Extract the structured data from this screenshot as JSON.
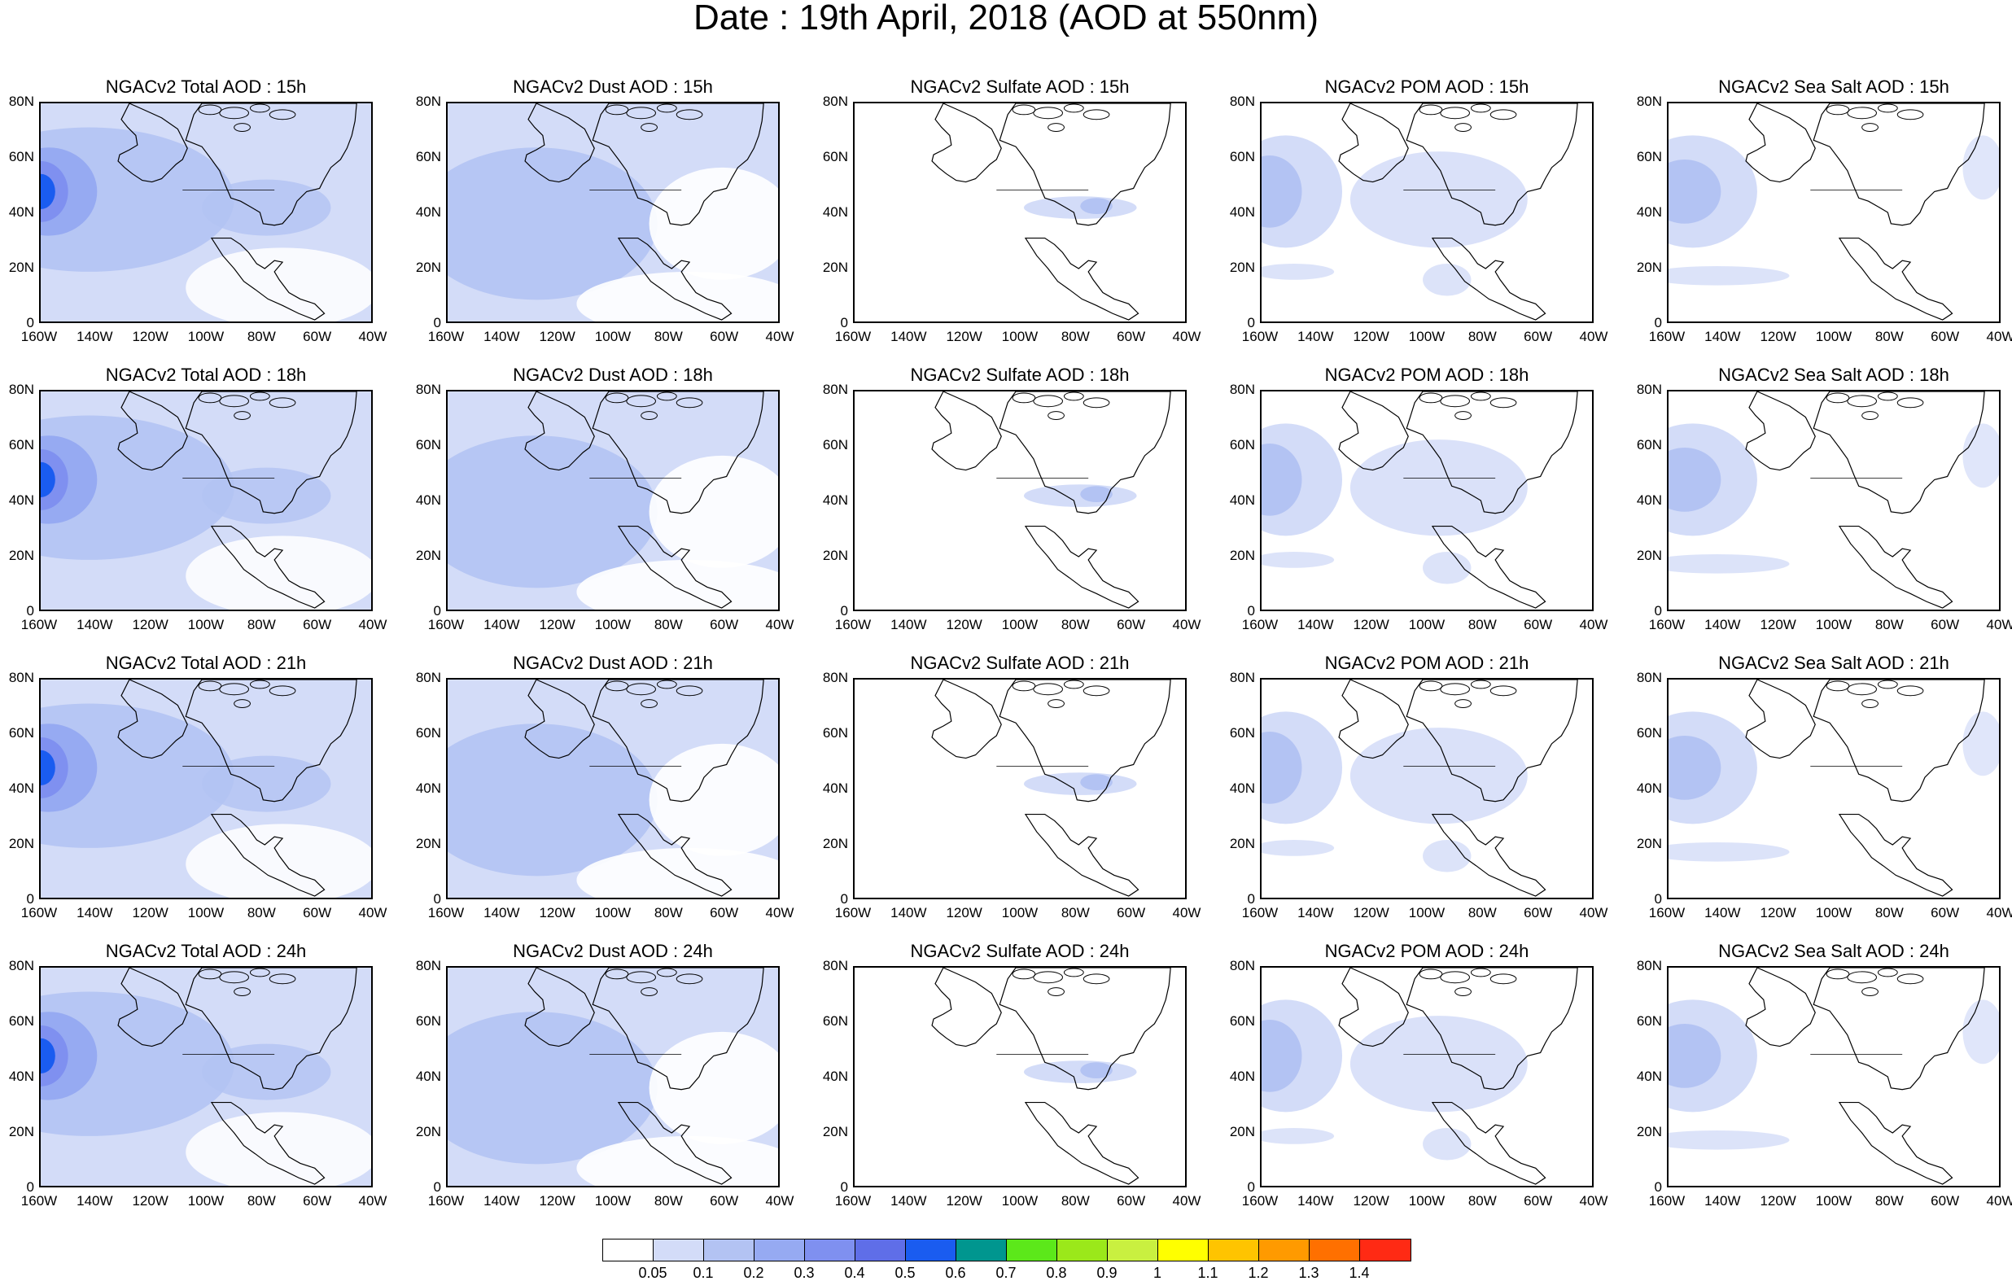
{
  "title": "Date : 19th April, 2018 (AOD at 550nm)",
  "latitude_labels": [
    "80N",
    "60N",
    "40N",
    "20N",
    "0"
  ],
  "longitude_labels": [
    "160W",
    "140W",
    "120W",
    "100W",
    "80W",
    "60W",
    "40W"
  ],
  "panels": [
    {
      "title": "NGACv2 Total AOD : 15h",
      "species": "total",
      "hour": "15h"
    },
    {
      "title": "NGACv2 Dust AOD : 15h",
      "species": "dust",
      "hour": "15h"
    },
    {
      "title": "NGACv2 Sulfate AOD : 15h",
      "species": "sulfate",
      "hour": "15h"
    },
    {
      "title": "NGACv2 POM AOD : 15h",
      "species": "pom",
      "hour": "15h"
    },
    {
      "title": "NGACv2 Sea Salt AOD : 15h",
      "species": "seasalt",
      "hour": "15h"
    },
    {
      "title": "NGACv2 Total AOD : 18h",
      "species": "total",
      "hour": "18h"
    },
    {
      "title": "NGACv2 Dust AOD : 18h",
      "species": "dust",
      "hour": "18h"
    },
    {
      "title": "NGACv2 Sulfate AOD : 18h",
      "species": "sulfate",
      "hour": "18h"
    },
    {
      "title": "NGACv2 POM AOD : 18h",
      "species": "pom",
      "hour": "18h"
    },
    {
      "title": "NGACv2 Sea Salt AOD : 18h",
      "species": "seasalt",
      "hour": "18h"
    },
    {
      "title": "NGACv2 Total AOD : 21h",
      "species": "total",
      "hour": "21h"
    },
    {
      "title": "NGACv2 Dust AOD : 21h",
      "species": "dust",
      "hour": "21h"
    },
    {
      "title": "NGACv2 Sulfate AOD : 21h",
      "species": "sulfate",
      "hour": "21h"
    },
    {
      "title": "NGACv2 POM AOD : 21h",
      "species": "pom",
      "hour": "21h"
    },
    {
      "title": "NGACv2 Sea Salt AOD : 21h",
      "species": "seasalt",
      "hour": "21h"
    },
    {
      "title": "NGACv2 Total AOD : 24h",
      "species": "total",
      "hour": "24h"
    },
    {
      "title": "NGACv2 Dust AOD : 24h",
      "species": "dust",
      "hour": "24h"
    },
    {
      "title": "NGACv2 Sulfate AOD : 24h",
      "species": "sulfate",
      "hour": "24h"
    },
    {
      "title": "NGACv2 POM AOD : 24h",
      "species": "pom",
      "hour": "24h"
    },
    {
      "title": "NGACv2 Sea Salt  AOD : 24h",
      "species": "seasalt",
      "hour": "24h"
    }
  ],
  "colorbar": {
    "colors": [
      "#ffffff",
      "#d3dcf8",
      "#b3c3f3",
      "#96aaf2",
      "#7f90f0",
      "#5f6ee8",
      "#1a5cf0",
      "#00968f",
      "#5ce81a",
      "#9be81a",
      "#c9f040",
      "#ffff00",
      "#ffc400",
      "#ff9a00",
      "#ff7000",
      "#ff2a14"
    ],
    "labels": [
      "0.05",
      "0.1",
      "0.2",
      "0.3",
      "0.4",
      "0.5",
      "0.6",
      "0.7",
      "0.8",
      "0.9",
      "1",
      "1.1",
      "1.2",
      "1.3",
      "1.4"
    ]
  }
}
